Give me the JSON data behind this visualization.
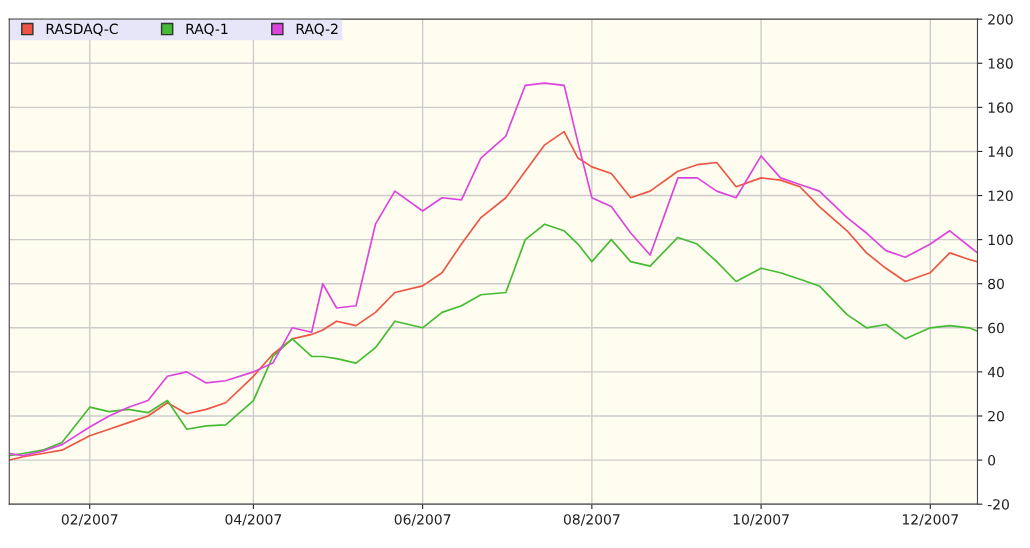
{
  "chart_data": {
    "type": "line",
    "x": [
      "2007-01-03",
      "2007-01-08",
      "2007-01-15",
      "2007-01-22",
      "2007-02-01",
      "2007-02-08",
      "2007-02-15",
      "2007-02-22",
      "2007-03-01",
      "2007-03-08",
      "2007-03-15",
      "2007-03-22",
      "2007-04-01",
      "2007-04-08",
      "2007-04-15",
      "2007-04-22",
      "2007-04-26",
      "2007-05-01",
      "2007-05-08",
      "2007-05-15",
      "2007-05-22",
      "2007-06-01",
      "2007-06-08",
      "2007-06-15",
      "2007-06-22",
      "2007-07-01",
      "2007-07-08",
      "2007-07-15",
      "2007-07-22",
      "2007-07-27",
      "2007-08-01",
      "2007-08-08",
      "2007-08-15",
      "2007-08-22",
      "2007-09-01",
      "2007-09-08",
      "2007-09-15",
      "2007-09-22",
      "2007-10-01",
      "2007-10-08",
      "2007-10-15",
      "2007-10-22",
      "2007-11-01",
      "2007-11-08",
      "2007-11-15",
      "2007-11-22",
      "2007-12-01",
      "2007-12-08",
      "2007-12-15",
      "2007-12-18"
    ],
    "series": [
      {
        "name": "RASDAQ-C",
        "color": "#ee5544",
        "values": [
          0,
          1.5,
          3,
          4.5,
          11,
          14,
          17,
          20,
          26,
          21,
          23,
          26,
          38,
          48,
          55,
          57,
          59,
          63,
          61,
          67,
          76,
          79,
          85,
          98,
          110,
          119,
          131,
          143,
          149,
          137,
          133,
          130,
          119,
          122,
          131,
          134,
          135,
          124,
          128,
          127,
          124,
          115,
          104,
          94,
          87,
          81,
          85,
          94,
          91,
          90
        ]
      },
      {
        "name": "RAQ-1",
        "color": "#44bb33",
        "values": [
          2,
          3,
          4.5,
          8,
          24,
          22,
          23,
          21.5,
          27,
          14,
          15.5,
          16,
          27,
          47,
          55,
          47,
          47,
          46,
          44,
          51,
          63,
          60,
          67,
          70,
          75,
          76,
          100,
          107,
          104,
          98,
          90,
          100,
          90,
          88,
          101,
          98,
          90,
          81,
          87,
          85,
          82,
          79,
          66,
          60,
          61.5,
          55,
          60,
          61,
          60,
          58.5
        ]
      },
      {
        "name": "RAQ-2",
        "color": "#dd44dd",
        "values": [
          3,
          2,
          4,
          7,
          15,
          20,
          24,
          27,
          38,
          40,
          35,
          36,
          40,
          44,
          60,
          58,
          80,
          69,
          70,
          107,
          122,
          113,
          119,
          118,
          137,
          147,
          170,
          171,
          170,
          144,
          119,
          115,
          103,
          93,
          128,
          128,
          122,
          119,
          138,
          128,
          125,
          122,
          110,
          103,
          95,
          92,
          98,
          104,
          97,
          94
        ]
      }
    ],
    "xlim": [
      "2007-01-03",
      "2007-12-18"
    ],
    "xticks": [
      {
        "value": "2007-02-01",
        "label": "02/2007"
      },
      {
        "value": "2007-04-01",
        "label": "04/2007"
      },
      {
        "value": "2007-06-01",
        "label": "06/2007"
      },
      {
        "value": "2007-08-01",
        "label": "08/2007"
      },
      {
        "value": "2007-10-01",
        "label": "10/2007"
      },
      {
        "value": "2007-12-01",
        "label": "12/2007"
      }
    ],
    "ylim": [
      -20,
      200
    ],
    "yticks": [
      -20,
      0,
      20,
      40,
      60,
      80,
      100,
      120,
      140,
      160,
      180,
      200
    ],
    "grid": true,
    "legend": "top left"
  }
}
